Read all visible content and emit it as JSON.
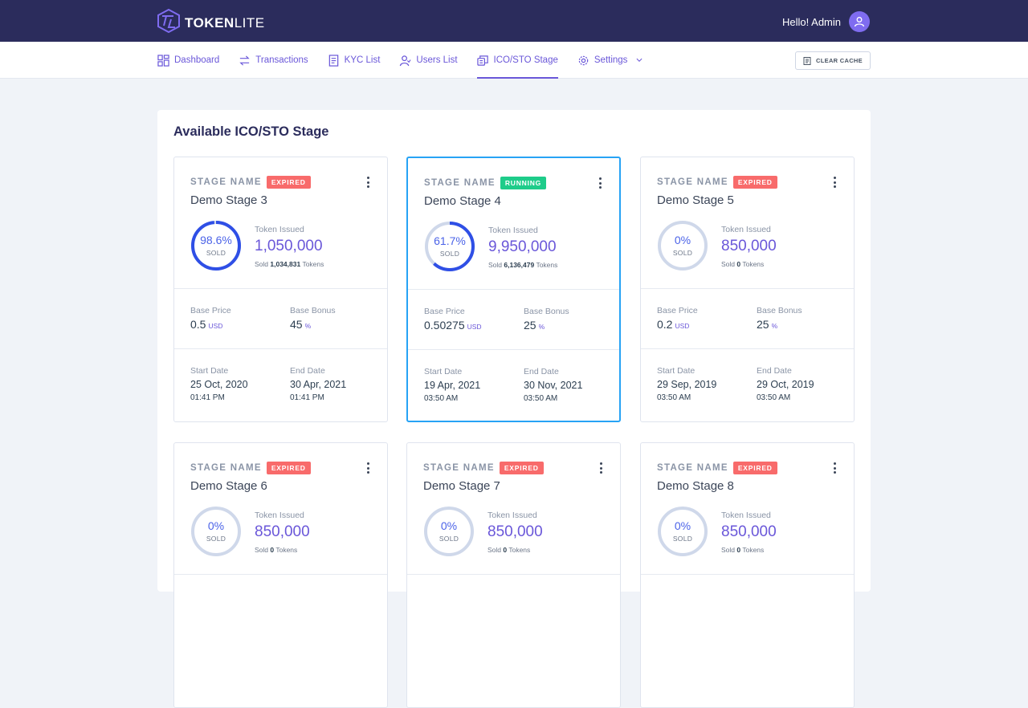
{
  "app": {
    "brand_bold": "TOKEN",
    "brand_light": "LITE",
    "greeting": "Hello! Admin"
  },
  "nav": {
    "items": [
      {
        "label": "Dashboard",
        "icon": "dashboard-icon"
      },
      {
        "label": "Transactions",
        "icon": "transfer-icon"
      },
      {
        "label": "KYC List",
        "icon": "document-icon"
      },
      {
        "label": "Users List",
        "icon": "users-icon"
      },
      {
        "label": "ICO/STO Stage",
        "icon": "coins-icon"
      },
      {
        "label": "Settings",
        "icon": "gear-icon"
      }
    ],
    "active": "ICO/STO Stage",
    "clear_cache": "CLEAR CACHE"
  },
  "panel": {
    "title": "Available ICO/STO Stage"
  },
  "labels": {
    "stage_name": "STAGE NAME",
    "token_issued": "Token Issued",
    "sold": "SOLD",
    "sold_prefix": "Sold",
    "tokens": "Tokens",
    "base_price": "Base Price",
    "base_bonus": "Base Bonus",
    "start_date": "Start Date",
    "end_date": "End Date",
    "usd": "USD",
    "percent": "%"
  },
  "colors": {
    "accent": "#6a57d9",
    "ring": "#4b63e8",
    "expired": "#f86b6b",
    "running": "#1ecc8a",
    "active_border": "#27a3f5"
  },
  "stages": [
    {
      "status": "EXPIRED",
      "name": "Demo Stage 3",
      "percent_label": "98.6%",
      "fraction": 0.986,
      "issued": "1,050,000",
      "sold": "1,034,831",
      "price": "0.5",
      "bonus": "45",
      "start_date": "25 Oct, 2020",
      "start_time": "01:41 PM",
      "end_date": "30 Apr, 2021",
      "end_time": "01:41 PM"
    },
    {
      "status": "RUNNING",
      "name": "Demo Stage 4",
      "percent_label": "61.7%",
      "fraction": 0.617,
      "issued": "9,950,000",
      "sold": "6,136,479",
      "price": "0.50275",
      "bonus": "25",
      "start_date": "19 Apr, 2021",
      "start_time": "03:50 AM",
      "end_date": "30 Nov, 2021",
      "end_time": "03:50 AM"
    },
    {
      "status": "EXPIRED",
      "name": "Demo Stage 5",
      "percent_label": "0%",
      "fraction": 0,
      "issued": "850,000",
      "sold": "0",
      "price": "0.2",
      "bonus": "25",
      "start_date": "29 Sep, 2019",
      "start_time": "03:50 AM",
      "end_date": "29 Oct, 2019",
      "end_time": "03:50 AM"
    },
    {
      "status": "EXPIRED",
      "name": "Demo Stage 6",
      "percent_label": "0%",
      "fraction": 0,
      "issued": "850,000",
      "sold": "0"
    },
    {
      "status": "EXPIRED",
      "name": "Demo Stage 7",
      "percent_label": "0%",
      "fraction": 0,
      "issued": "850,000",
      "sold": "0"
    },
    {
      "status": "EXPIRED",
      "name": "Demo Stage 8",
      "percent_label": "0%",
      "fraction": 0,
      "issued": "850,000",
      "sold": "0"
    }
  ]
}
